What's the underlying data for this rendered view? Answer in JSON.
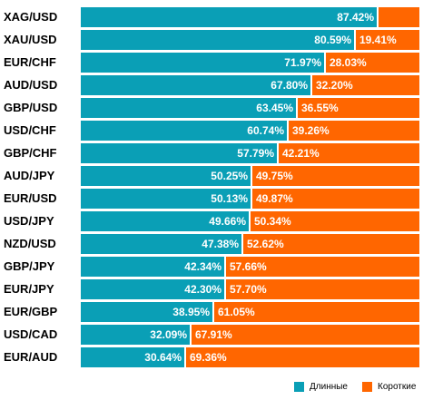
{
  "chart_data": {
    "type": "bar",
    "orientation": "horizontal",
    "stacked": true,
    "categories": [
      "XAG/USD",
      "XAU/USD",
      "EUR/CHF",
      "AUD/USD",
      "GBP/USD",
      "USD/CHF",
      "GBP/CHF",
      "AUD/JPY",
      "EUR/USD",
      "USD/JPY",
      "NZD/USD",
      "GBP/JPY",
      "EUR/JPY",
      "EUR/GBP",
      "USD/CAD",
      "EUR/AUD"
    ],
    "series": [
      {
        "name": "Длинные",
        "color": "#0a9fb6",
        "values": [
          87.42,
          80.59,
          71.97,
          67.8,
          63.45,
          60.74,
          57.79,
          50.25,
          50.13,
          49.66,
          47.38,
          42.34,
          42.3,
          38.95,
          32.09,
          30.64
        ],
        "labels": [
          "87.42%",
          "80.59%",
          "71.97%",
          "67.80%",
          "63.45%",
          "60.74%",
          "57.79%",
          "50.25%",
          "50.13%",
          "49.66%",
          "47.38%",
          "42.34%",
          "42.30%",
          "38.95%",
          "32.09%",
          "30.64%"
        ]
      },
      {
        "name": "Короткие",
        "color": "#ff6600",
        "values": [
          12.58,
          19.41,
          28.03,
          32.2,
          36.55,
          39.26,
          42.21,
          49.75,
          49.87,
          50.34,
          52.62,
          57.66,
          57.7,
          61.05,
          67.91,
          69.36
        ],
        "labels": [
          "",
          "19.41%",
          "28.03%",
          "32.20%",
          "36.55%",
          "39.26%",
          "42.21%",
          "49.75%",
          "49.87%",
          "50.34%",
          "52.62%",
          "57.66%",
          "57.70%",
          "61.05%",
          "67.91%",
          "69.36%"
        ]
      }
    ],
    "xlim": [
      0,
      100
    ],
    "legend_position": "bottom-right"
  }
}
